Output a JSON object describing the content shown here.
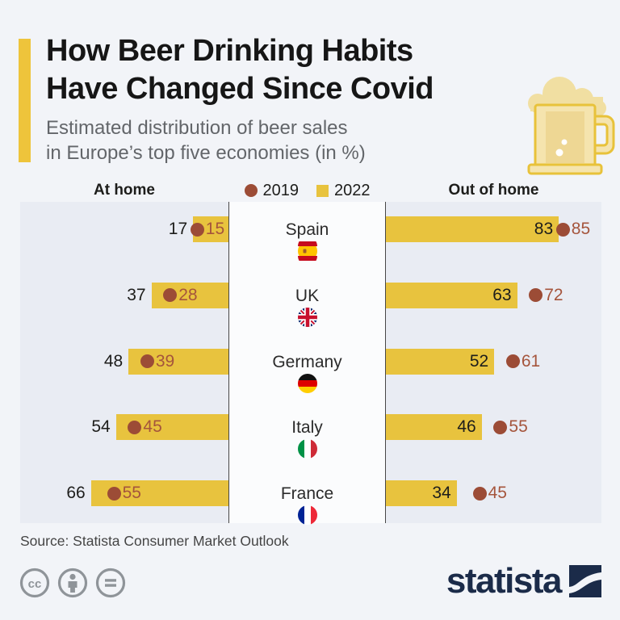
{
  "header": {
    "title_lines": [
      "How Beer Drinking Habits",
      "Have Changed Since Covid"
    ],
    "subtitle_lines": [
      "Estimated distribution of beer sales",
      "in Europe’s top five economies (in %)"
    ],
    "accent_color": "#eec43b"
  },
  "legend": {
    "left_header": "At home",
    "right_header": "Out of home",
    "items": [
      {
        "label": "2019",
        "marker": "circle",
        "color": "#9c4c36"
      },
      {
        "label": "2022",
        "marker": "square",
        "color": "#e8c33e"
      }
    ]
  },
  "chart_data": {
    "type": "bar",
    "variant": "diverging-horizontal",
    "unit": "%",
    "xlim": [
      0,
      100
    ],
    "categories": [
      "Spain",
      "UK",
      "Germany",
      "Italy",
      "France"
    ],
    "flags": [
      "es",
      "gb",
      "de",
      "it",
      "fr"
    ],
    "sides": [
      "At home",
      "Out of home"
    ],
    "series": [
      {
        "name": "2022",
        "style": "bar",
        "color": "#e8c33e",
        "at_home": [
          17,
          37,
          48,
          54,
          66
        ],
        "out_of_home": [
          83,
          63,
          52,
          46,
          34
        ]
      },
      {
        "name": "2019",
        "style": "dot",
        "color": "#9c4c36",
        "at_home": [
          15,
          28,
          39,
          45,
          55
        ],
        "out_of_home": [
          85,
          72,
          61,
          55,
          45
        ]
      }
    ]
  },
  "source": {
    "text": "Source: Statista Consumer Market Outlook"
  },
  "footer": {
    "license_icons": [
      "cc-icon",
      "attribution-icon",
      "nd-icon"
    ],
    "brand_text": "statista",
    "brand_color": "#1b2b49"
  },
  "colors": {
    "page_bg": "#f2f4f8",
    "panel_bg": "#e9ecf3",
    "center_bg": "#fbfcfd",
    "divider": "#474747",
    "bar_yellow": "#e8c33e",
    "dot_brown": "#9c4c36",
    "value_black": "#1d1d1b",
    "value_brown": "#a5553c",
    "title_black": "#161616",
    "subtitle_gray": "#63666a"
  }
}
